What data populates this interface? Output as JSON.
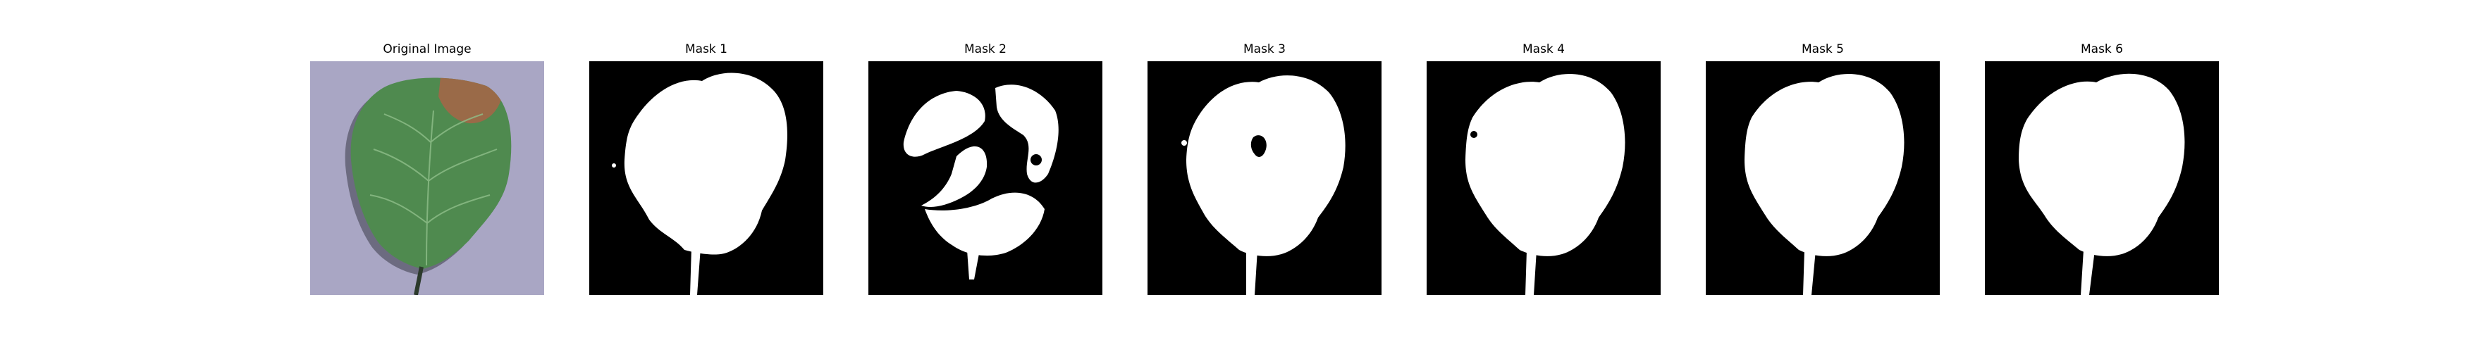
{
  "panels": [
    {
      "title": "Original Image"
    },
    {
      "title": "Mask 1"
    },
    {
      "title": "Mask 2"
    },
    {
      "title": "Mask 3"
    },
    {
      "title": "Mask 4"
    },
    {
      "title": "Mask 5"
    },
    {
      "title": "Mask 6"
    }
  ],
  "colors": {
    "background": "#ffffff",
    "mask_background": "#000000",
    "mask_foreground": "#ffffff",
    "leaf_green": "#4f8a4f",
    "lesion_brown": "#9a6a48",
    "surface_lavender": "#a9a6c4"
  }
}
